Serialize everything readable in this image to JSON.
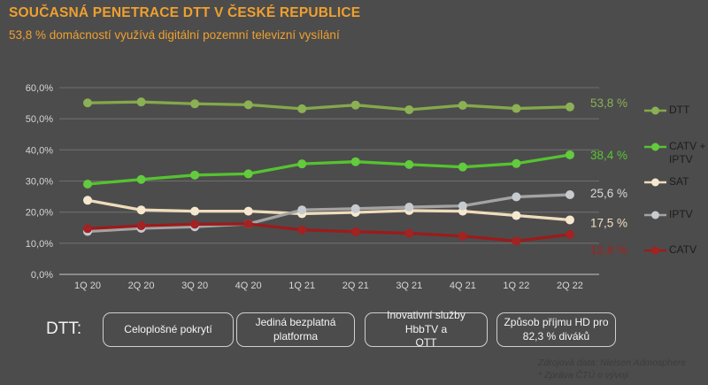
{
  "header": {
    "title": "SOUČASNÁ PENETRACE DTT V ČESKÉ REPUBLICE",
    "subtitle": "53,8 % domácností využívá digitální pozemní televizní vysílání"
  },
  "colors": {
    "background": "#4C4C4C",
    "accent_orange": "#EFA02F",
    "axis_text": "#D6D6D6",
    "gridline": "#6E6E6E",
    "axis_line": "#9E9E9E",
    "legend_text": "#1C1C1C",
    "box_border": "#CFCFCF"
  },
  "chart_data": {
    "type": "line",
    "title": "",
    "xlabel": "",
    "ylabel": "",
    "ylim": [
      0,
      60
    ],
    "grid": true,
    "legend_position": "right",
    "y_tick_labels": [
      "0,0%",
      "10,0%",
      "20,0%",
      "30,0%",
      "40,0%",
      "50,0%",
      "60,0%"
    ],
    "categories": [
      "1Q 20",
      "2Q 20",
      "3Q 20",
      "4Q 20",
      "1Q 21",
      "2Q 21",
      "3Q 21",
      "4Q 21",
      "1Q 22",
      "2Q 22"
    ],
    "series": [
      {
        "name": "DTT",
        "values": [
          55.1,
          55.4,
          54.8,
          54.5,
          53.2,
          54.4,
          52.9,
          54.3,
          53.3,
          53.8
        ],
        "color": "#84A84B",
        "marker_color": "#8CB054",
        "value_label": "53,8 %",
        "label_color": "#8CB054",
        "label_dy": -5
      },
      {
        "name": "CATV +\nIPTV",
        "values": [
          29.0,
          30.5,
          31.9,
          32.3,
          35.5,
          36.2,
          35.3,
          34.5,
          35.6,
          38.4
        ],
        "color": "#56C230",
        "marker_color": "#63CB3E",
        "value_label": "38,4 %",
        "label_color": "#5BC535",
        "label_dy": 0
      },
      {
        "name": "SAT",
        "values": [
          23.8,
          20.7,
          20.3,
          20.3,
          19.5,
          19.9,
          20.5,
          20.3,
          18.9,
          17.5
        ],
        "color": "#EFDCBB",
        "marker_color": "#F6E8CE",
        "value_label": "17,5 %",
        "label_color": "#F2DFC0",
        "label_dy": 3
      },
      {
        "name": "IPTV",
        "values": [
          13.8,
          14.8,
          15.3,
          16.2,
          20.7,
          21.1,
          21.6,
          22.0,
          24.9,
          25.6
        ],
        "color": "#A3A3A3",
        "marker_color": "#C6CBD0",
        "value_label": "25,6 %",
        "label_color": "#D9D9D9",
        "label_dy": -2
      },
      {
        "name": "CATV",
        "values": [
          14.7,
          15.6,
          16.1,
          16.2,
          14.3,
          13.7,
          13.2,
          12.3,
          10.7,
          12.8
        ],
        "color": "#9C1B1B",
        "marker_color": "#A32222",
        "value_label": "12,8 %",
        "label_color": "#A32222",
        "label_dy": 17
      }
    ]
  },
  "bottom": {
    "dtt_label": "DTT:",
    "boxes": [
      "Celoplošné pokrytí",
      "Jediná bezplatná\nplatforma",
      "Inovativní služby HbbTV a\nOTT",
      "Způsob příjmu HD pro\n82,3 % diváků"
    ]
  },
  "source": {
    "line1": "Zdrojová data: Nielsen Admosphere",
    "line2": "* Zpráva ČTÚ o vývoji"
  }
}
